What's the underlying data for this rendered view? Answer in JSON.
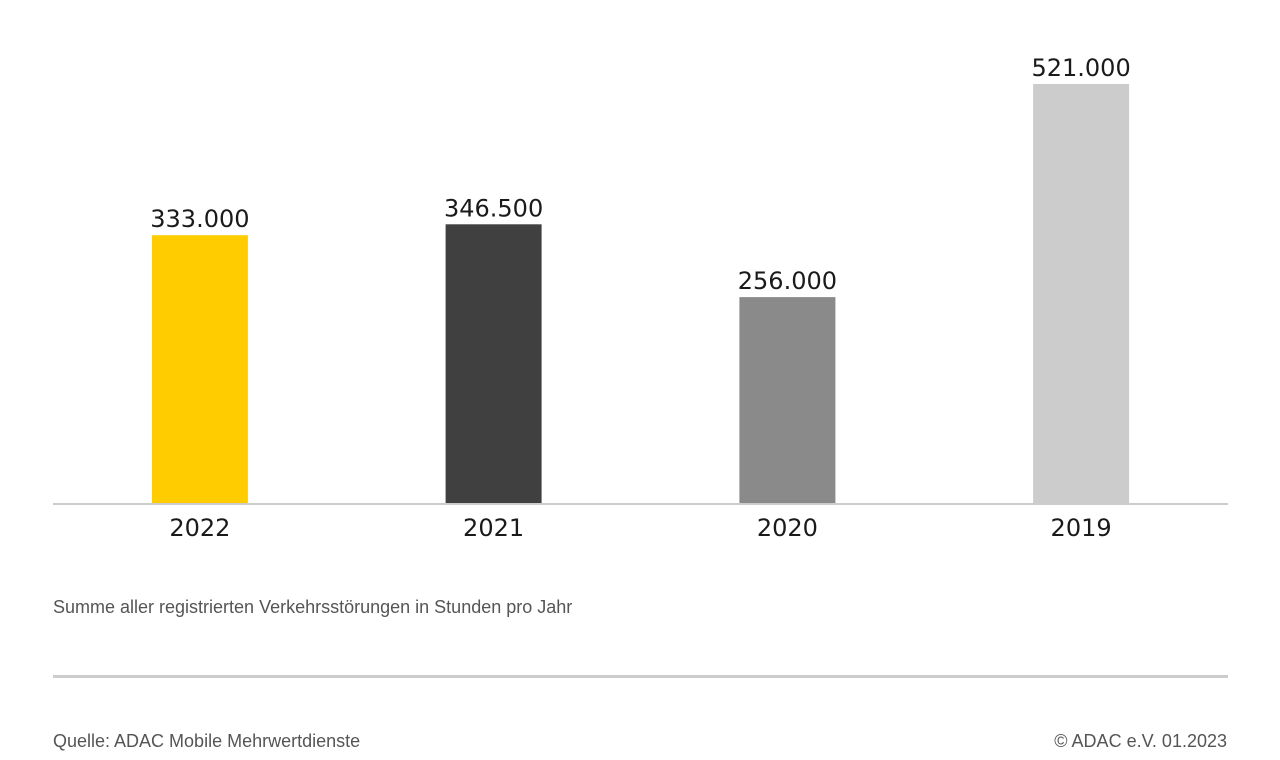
{
  "chart_data": {
    "type": "bar",
    "categories": [
      "2022",
      "2021",
      "2020",
      "2019"
    ],
    "values": [
      333000,
      346500,
      256000,
      521000
    ],
    "value_labels": [
      "333.000",
      "346.500",
      "256.000",
      "521.000"
    ],
    "bar_colors": [
      "#ffcc00",
      "#404040",
      "#8a8a8a",
      "#cccccc"
    ],
    "ylim": [
      0,
      521000
    ],
    "grid": false,
    "legend": "none"
  },
  "caption": "Summe aller registrierten Verkehrsstörungen in Stunden pro Jahr",
  "footer": {
    "source": "Quelle: ADAC Mobile Mehrwertdienste",
    "copyright": "© ADAC e.V. 01.2023"
  },
  "colors": {
    "axis": "#cccccc",
    "text": "#1a1a1a",
    "muted_text": "#555555"
  }
}
